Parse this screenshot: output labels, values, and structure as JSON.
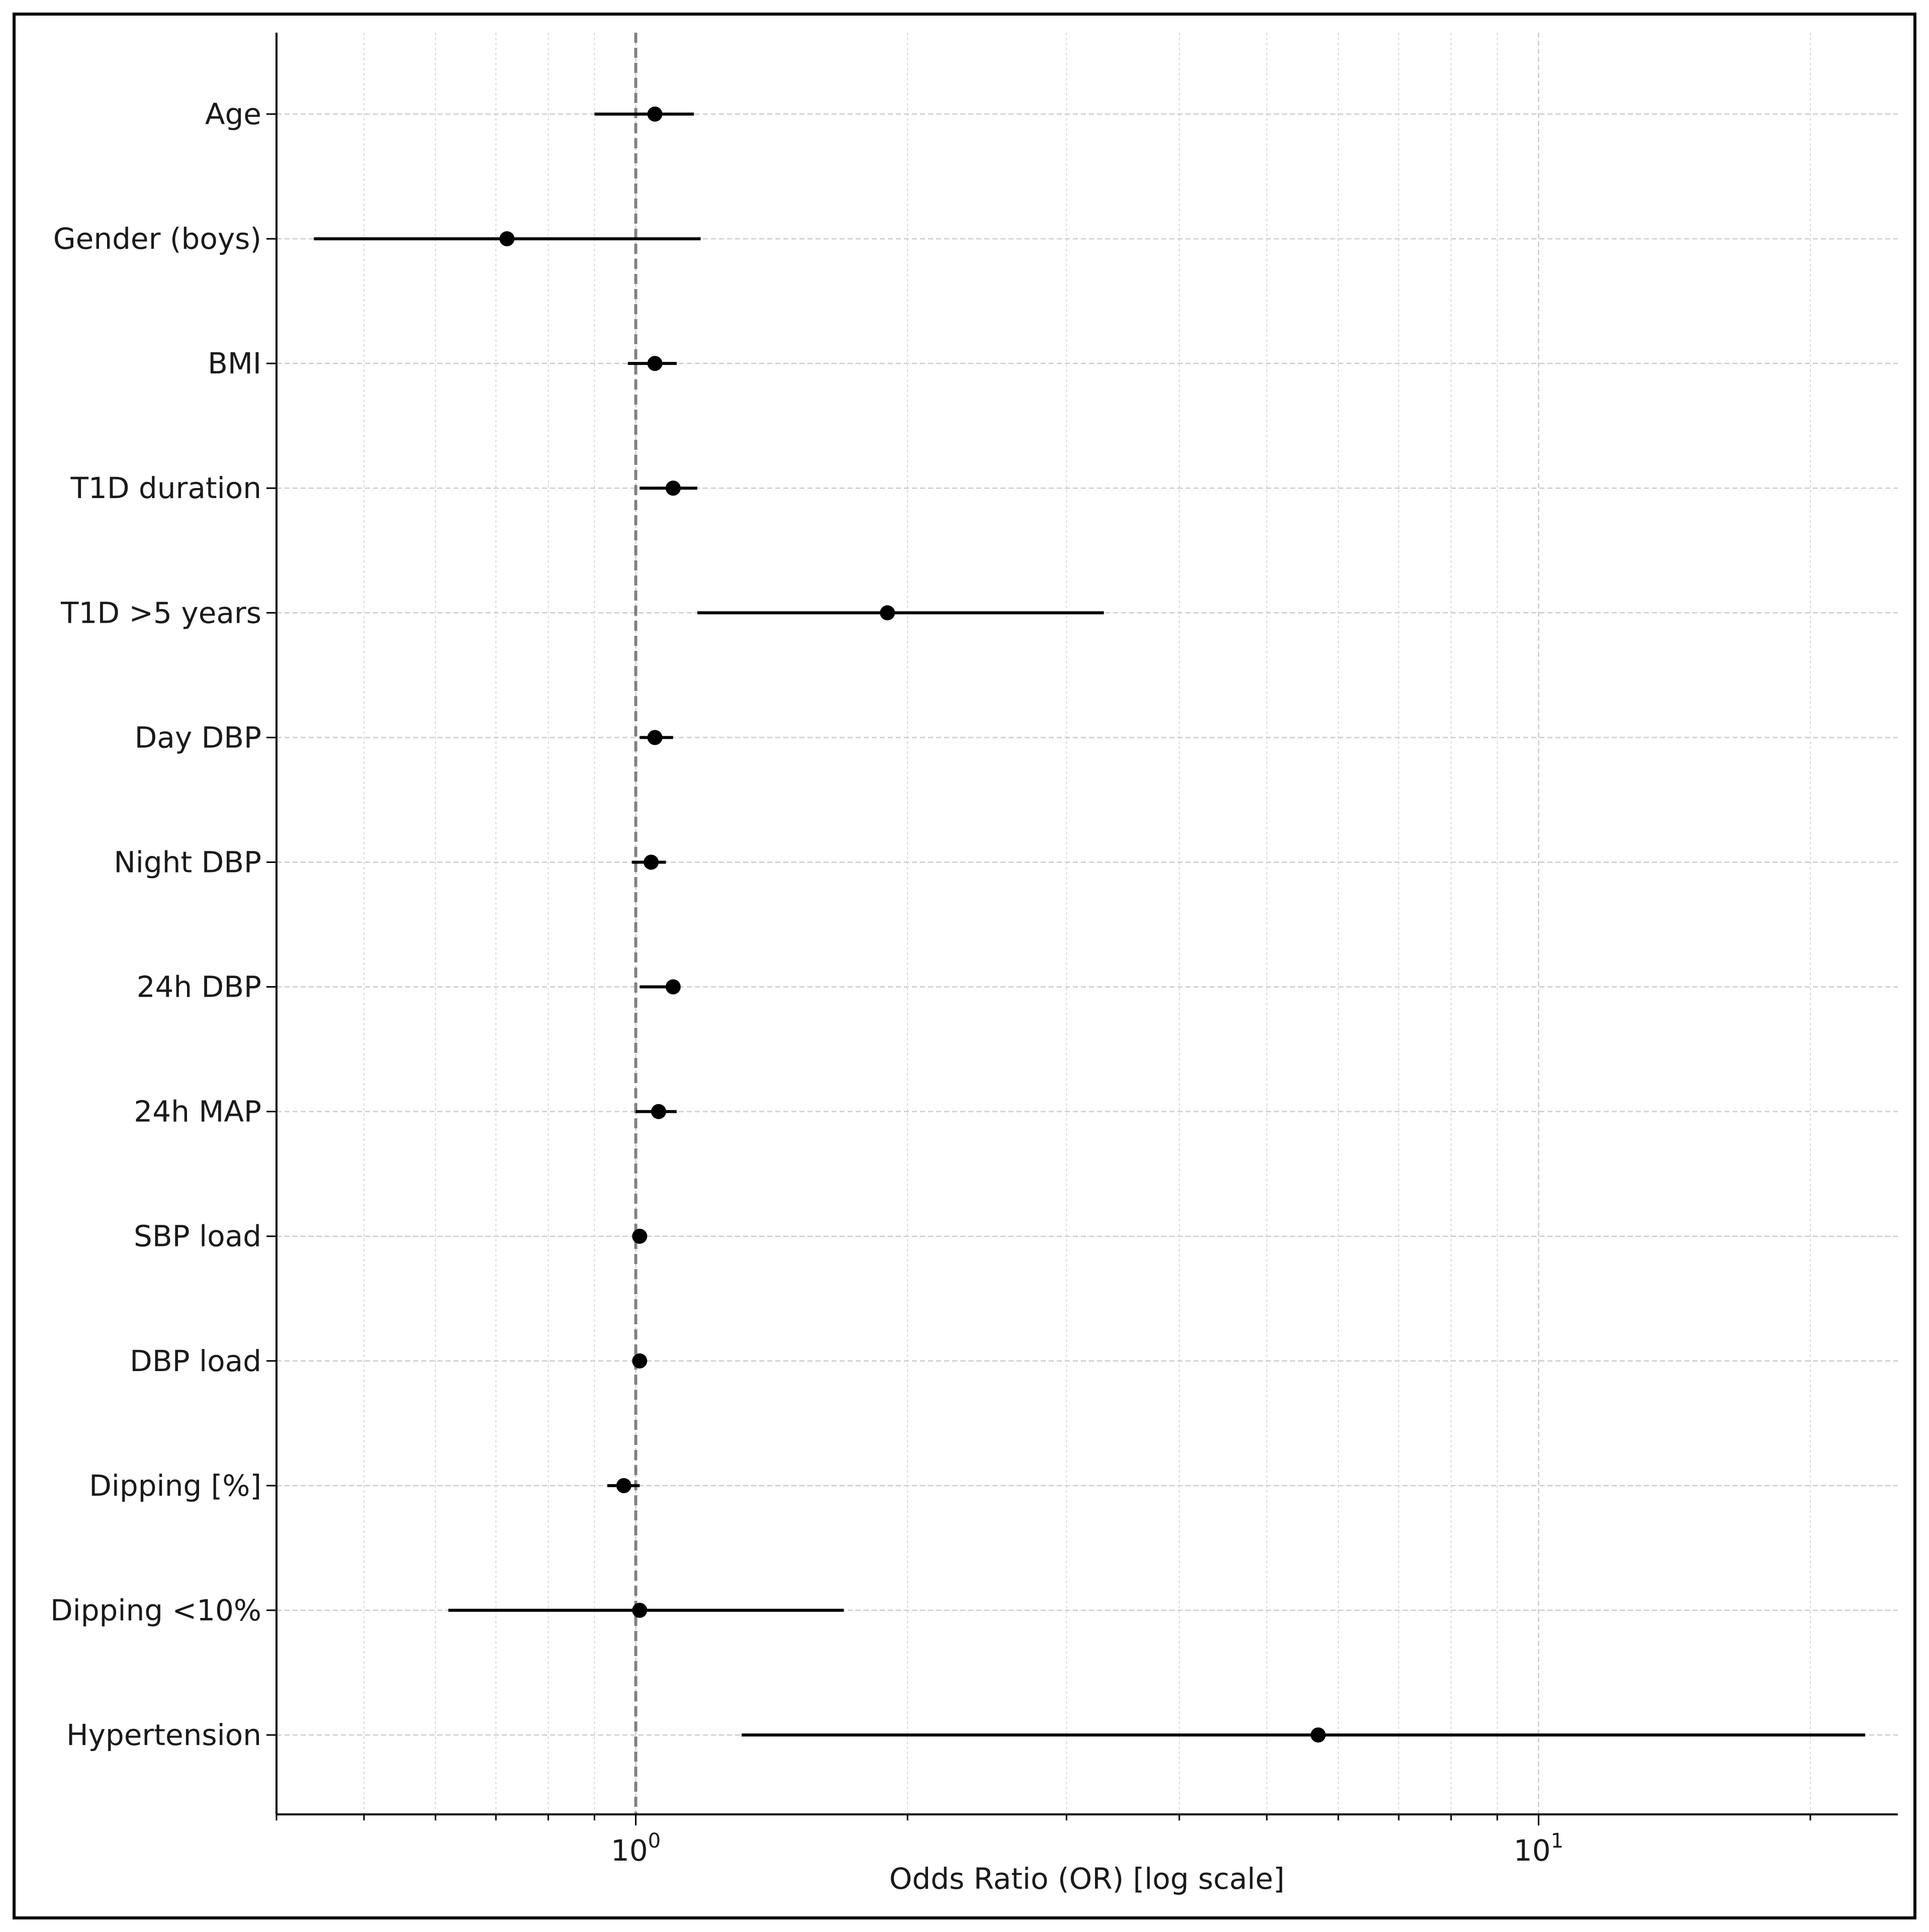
{
  "chart_data": {
    "type": "forest",
    "title": "",
    "xlabel": "Odds Ratio (OR) [log scale]",
    "ylabel": "",
    "x_scale": "log",
    "xlim": [
      0.4,
      25
    ],
    "reference_line": 1,
    "grid": true,
    "x_ticks": [
      {
        "value": 1,
        "base": "10",
        "exp": "0"
      },
      {
        "value": 10,
        "base": "10",
        "exp": "1"
      }
    ],
    "rows": [
      {
        "label": "Age",
        "or": 1.05,
        "ci": [
          0.9,
          1.16
        ]
      },
      {
        "label": "Gender (boys)",
        "or": 0.72,
        "ci": [
          0.44,
          1.18
        ]
      },
      {
        "label": "BMI",
        "or": 1.05,
        "ci": [
          0.98,
          1.11
        ]
      },
      {
        "label": "T1D duration",
        "or": 1.1,
        "ci": [
          1.01,
          1.17
        ]
      },
      {
        "label": "T1D >5 years",
        "or": 1.9,
        "ci": [
          1.17,
          3.3
        ]
      },
      {
        "label": "Day DBP",
        "or": 1.05,
        "ci": [
          1.01,
          1.1
        ]
      },
      {
        "label": "Night DBP",
        "or": 1.04,
        "ci": [
          0.99,
          1.08
        ]
      },
      {
        "label": "24h DBP",
        "or": 1.1,
        "ci": [
          1.01,
          1.1
        ]
      },
      {
        "label": "24h MAP",
        "or": 1.06,
        "ci": [
          1.0,
          1.11
        ]
      },
      {
        "label": "SBP load",
        "or": 1.01,
        "ci": [
          1.0,
          1.02
        ]
      },
      {
        "label": "DBP load",
        "or": 1.01,
        "ci": [
          1.0,
          1.02
        ]
      },
      {
        "label": "Dipping [%]",
        "or": 0.97,
        "ci": [
          0.93,
          1.01
        ]
      },
      {
        "label": "Dipping <10%",
        "or": 1.01,
        "ci": [
          0.62,
          1.7
        ]
      },
      {
        "label": "Hypertension",
        "or": 5.7,
        "ci": [
          1.31,
          23
        ]
      }
    ]
  }
}
